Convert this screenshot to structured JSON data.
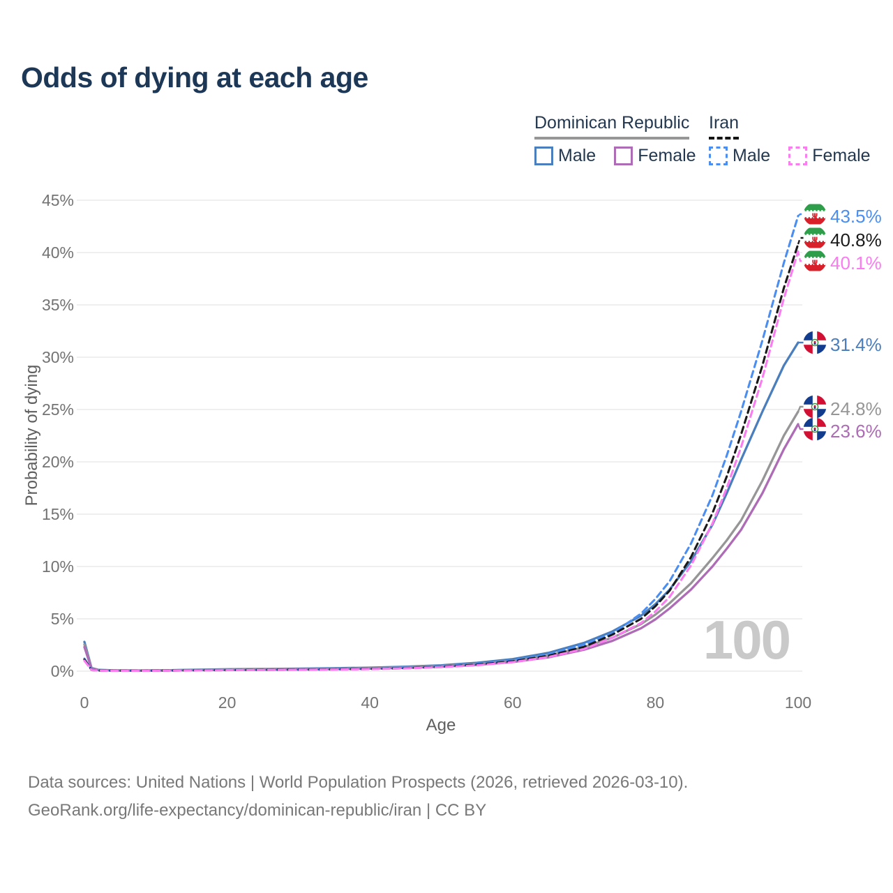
{
  "title": "Odds of dying at each age",
  "legend": {
    "groups": [
      {
        "id": "dominican-republic",
        "label": "Dominican Republic",
        "line_style": "solid",
        "line_color": "#969696",
        "items": [
          {
            "id": "dr-male",
            "label": "Male",
            "color": "#4a7ebd",
            "style": "solid"
          },
          {
            "id": "dr-female",
            "label": "Female",
            "color": "#ad6cb5",
            "style": "solid"
          }
        ]
      },
      {
        "id": "iran",
        "label": "Iran",
        "line_style": "dashed",
        "line_color": "#141414",
        "items": [
          {
            "id": "iran-male",
            "label": "Male",
            "color": "#4b8ef2",
            "style": "dashed"
          },
          {
            "id": "iran-female",
            "label": "Female",
            "color": "#fa7cf0",
            "style": "dashed"
          }
        ]
      }
    ]
  },
  "axes": {
    "y": {
      "title": "Probability of dying",
      "ticks": [
        {
          "label": "45%",
          "value": 45
        },
        {
          "label": "40%",
          "value": 40
        },
        {
          "label": "35%",
          "value": 35
        },
        {
          "label": "30%",
          "value": 30
        },
        {
          "label": "25%",
          "value": 25
        },
        {
          "label": "20%",
          "value": 20
        },
        {
          "label": "15%",
          "value": 15
        },
        {
          "label": "10%",
          "value": 10
        },
        {
          "label": "5%",
          "value": 5
        },
        {
          "label": "0%",
          "value": 0
        }
      ]
    },
    "x": {
      "title": "Age",
      "ticks": [
        {
          "label": "0",
          "value": 0
        },
        {
          "label": "20",
          "value": 20
        },
        {
          "label": "40",
          "value": 40
        },
        {
          "label": "60",
          "value": 60
        },
        {
          "label": "80",
          "value": 80
        },
        {
          "label": "100",
          "value": 100
        }
      ]
    }
  },
  "watermark": "100",
  "end_labels": [
    {
      "series": "iran-male",
      "text": "43.5%",
      "value": 43.5,
      "color": "#4b8ef2",
      "flag": "iran",
      "dash": true
    },
    {
      "series": "iran-all",
      "text": "40.8%",
      "value": 40.8,
      "color": "#1a1a1a",
      "flag": "iran",
      "dash": true
    },
    {
      "series": "iran-female",
      "text": "40.1%",
      "value": 40.1,
      "color": "#fa7cf0",
      "flag": "iran",
      "dash": true
    },
    {
      "series": "dr-male",
      "text": "31.4%",
      "value": 31.4,
      "color": "#4a7ebd",
      "flag": "dominican-republic",
      "dash": false
    },
    {
      "series": "dr-all",
      "text": "24.8%",
      "value": 24.8,
      "color": "#969696",
      "flag": "dominican-republic",
      "dash": false
    },
    {
      "series": "dr-female",
      "text": "23.6%",
      "value": 23.6,
      "color": "#ad6cb5",
      "flag": "dominican-republic",
      "dash": false
    }
  ],
  "footer": {
    "line1": "Data sources: United Nations | World Population Prospects (2026, retrieved 2026-03-10).",
    "line2": "GeoRank.org/life-expectancy/dominican-republic/iran | CC BY"
  },
  "chart_data": {
    "type": "line",
    "xlabel": "Age",
    "ylabel": "Probability of dying",
    "xlim": [
      0,
      100
    ],
    "ylim": [
      0,
      45
    ],
    "y_unit": "%",
    "grid": "horizontal-only",
    "legend_position": "top-right",
    "series": [
      {
        "id": "dr-male",
        "name": "Dominican Republic — Male",
        "color": "#4a7ebd",
        "dash": false,
        "end_value": 31.4,
        "points": [
          [
            0,
            2.8
          ],
          [
            1,
            0.3
          ],
          [
            2,
            0.12
          ],
          [
            4,
            0.08
          ],
          [
            8,
            0.07
          ],
          [
            12,
            0.09
          ],
          [
            16,
            0.14
          ],
          [
            20,
            0.18
          ],
          [
            25,
            0.21
          ],
          [
            30,
            0.24
          ],
          [
            35,
            0.28
          ],
          [
            40,
            0.33
          ],
          [
            45,
            0.42
          ],
          [
            50,
            0.56
          ],
          [
            55,
            0.8
          ],
          [
            60,
            1.15
          ],
          [
            65,
            1.75
          ],
          [
            70,
            2.7
          ],
          [
            74,
            3.8
          ],
          [
            78,
            5.3
          ],
          [
            80,
            6.4
          ],
          [
            82,
            7.8
          ],
          [
            85,
            10.5
          ],
          [
            88,
            14.0
          ],
          [
            90,
            17.0
          ],
          [
            92,
            20.2
          ],
          [
            95,
            24.8
          ],
          [
            98,
            29.2
          ],
          [
            100,
            31.4
          ]
        ]
      },
      {
        "id": "dr-all",
        "name": "Dominican Republic — Both sexes",
        "color": "#969696",
        "dash": false,
        "end_value": 24.8,
        "points": [
          [
            0,
            2.55
          ],
          [
            1,
            0.27
          ],
          [
            2,
            0.1
          ],
          [
            4,
            0.07
          ],
          [
            8,
            0.06
          ],
          [
            12,
            0.08
          ],
          [
            16,
            0.11
          ],
          [
            20,
            0.14
          ],
          [
            25,
            0.17
          ],
          [
            30,
            0.2
          ],
          [
            35,
            0.23
          ],
          [
            40,
            0.28
          ],
          [
            45,
            0.36
          ],
          [
            50,
            0.48
          ],
          [
            55,
            0.68
          ],
          [
            60,
            0.98
          ],
          [
            65,
            1.5
          ],
          [
            70,
            2.3
          ],
          [
            74,
            3.2
          ],
          [
            78,
            4.5
          ],
          [
            80,
            5.4
          ],
          [
            82,
            6.5
          ],
          [
            85,
            8.4
          ],
          [
            88,
            10.8
          ],
          [
            90,
            12.5
          ],
          [
            92,
            14.4
          ],
          [
            95,
            18.2
          ],
          [
            98,
            22.5
          ],
          [
            100,
            24.8
          ]
        ]
      },
      {
        "id": "dr-female",
        "name": "Dominican Republic — Female",
        "color": "#ad6cb5",
        "dash": false,
        "end_value": 23.6,
        "points": [
          [
            0,
            2.3
          ],
          [
            1,
            0.24
          ],
          [
            2,
            0.09
          ],
          [
            4,
            0.06
          ],
          [
            8,
            0.05
          ],
          [
            12,
            0.07
          ],
          [
            16,
            0.09
          ],
          [
            20,
            0.11
          ],
          [
            25,
            0.13
          ],
          [
            30,
            0.16
          ],
          [
            35,
            0.19
          ],
          [
            40,
            0.24
          ],
          [
            45,
            0.31
          ],
          [
            50,
            0.42
          ],
          [
            55,
            0.6
          ],
          [
            60,
            0.87
          ],
          [
            65,
            1.32
          ],
          [
            70,
            2.05
          ],
          [
            74,
            2.9
          ],
          [
            78,
            4.1
          ],
          [
            80,
            4.95
          ],
          [
            82,
            6.0
          ],
          [
            85,
            7.8
          ],
          [
            88,
            10.0
          ],
          [
            90,
            11.7
          ],
          [
            92,
            13.5
          ],
          [
            95,
            17.0
          ],
          [
            98,
            21.2
          ],
          [
            100,
            23.6
          ]
        ]
      },
      {
        "id": "iran-male",
        "name": "Iran — Male",
        "color": "#4b8ef2",
        "dash": true,
        "end_value": 43.5,
        "points": [
          [
            0,
            1.2
          ],
          [
            1,
            0.12
          ],
          [
            2,
            0.06
          ],
          [
            4,
            0.045
          ],
          [
            8,
            0.045
          ],
          [
            12,
            0.06
          ],
          [
            16,
            0.09
          ],
          [
            20,
            0.11
          ],
          [
            25,
            0.13
          ],
          [
            30,
            0.15
          ],
          [
            35,
            0.18
          ],
          [
            40,
            0.23
          ],
          [
            45,
            0.31
          ],
          [
            50,
            0.45
          ],
          [
            55,
            0.68
          ],
          [
            60,
            1.02
          ],
          [
            65,
            1.6
          ],
          [
            70,
            2.55
          ],
          [
            74,
            3.6
          ],
          [
            78,
            5.5
          ],
          [
            80,
            6.9
          ],
          [
            82,
            8.6
          ],
          [
            85,
            12.2
          ],
          [
            88,
            16.8
          ],
          [
            90,
            20.6
          ],
          [
            92,
            24.8
          ],
          [
            95,
            31.6
          ],
          [
            98,
            39.0
          ],
          [
            100,
            43.5
          ]
        ]
      },
      {
        "id": "iran-all",
        "name": "Iran — Both sexes",
        "color": "#1a1a1a",
        "dash": true,
        "end_value": 40.8,
        "points": [
          [
            0,
            1.1
          ],
          [
            1,
            0.11
          ],
          [
            2,
            0.055
          ],
          [
            4,
            0.04
          ],
          [
            8,
            0.04
          ],
          [
            12,
            0.055
          ],
          [
            16,
            0.08
          ],
          [
            20,
            0.1
          ],
          [
            25,
            0.12
          ],
          [
            30,
            0.14
          ],
          [
            35,
            0.165
          ],
          [
            40,
            0.21
          ],
          [
            45,
            0.28
          ],
          [
            50,
            0.41
          ],
          [
            55,
            0.62
          ],
          [
            60,
            0.94
          ],
          [
            65,
            1.47
          ],
          [
            70,
            2.32
          ],
          [
            74,
            3.5
          ],
          [
            78,
            5.0
          ],
          [
            80,
            6.2
          ],
          [
            82,
            7.7
          ],
          [
            85,
            10.9
          ],
          [
            88,
            15.1
          ],
          [
            90,
            18.6
          ],
          [
            92,
            22.6
          ],
          [
            95,
            29.2
          ],
          [
            98,
            36.6
          ],
          [
            100,
            40.8
          ]
        ]
      },
      {
        "id": "iran-female",
        "name": "Iran — Female",
        "color": "#fa7cf0",
        "dash": true,
        "end_value": 40.1,
        "points": [
          [
            0,
            1.0
          ],
          [
            1,
            0.1
          ],
          [
            2,
            0.05
          ],
          [
            4,
            0.035
          ],
          [
            8,
            0.035
          ],
          [
            12,
            0.05
          ],
          [
            16,
            0.07
          ],
          [
            20,
            0.09
          ],
          [
            25,
            0.105
          ],
          [
            30,
            0.125
          ],
          [
            35,
            0.15
          ],
          [
            40,
            0.19
          ],
          [
            45,
            0.26
          ],
          [
            50,
            0.38
          ],
          [
            55,
            0.56
          ],
          [
            60,
            0.86
          ],
          [
            65,
            1.35
          ],
          [
            70,
            2.12
          ],
          [
            74,
            3.2
          ],
          [
            78,
            4.6
          ],
          [
            80,
            5.7
          ],
          [
            82,
            7.1
          ],
          [
            85,
            10.1
          ],
          [
            88,
            14.1
          ],
          [
            90,
            17.5
          ],
          [
            92,
            21.4
          ],
          [
            95,
            28.0
          ],
          [
            98,
            35.6
          ],
          [
            100,
            40.1
          ]
        ]
      }
    ]
  }
}
